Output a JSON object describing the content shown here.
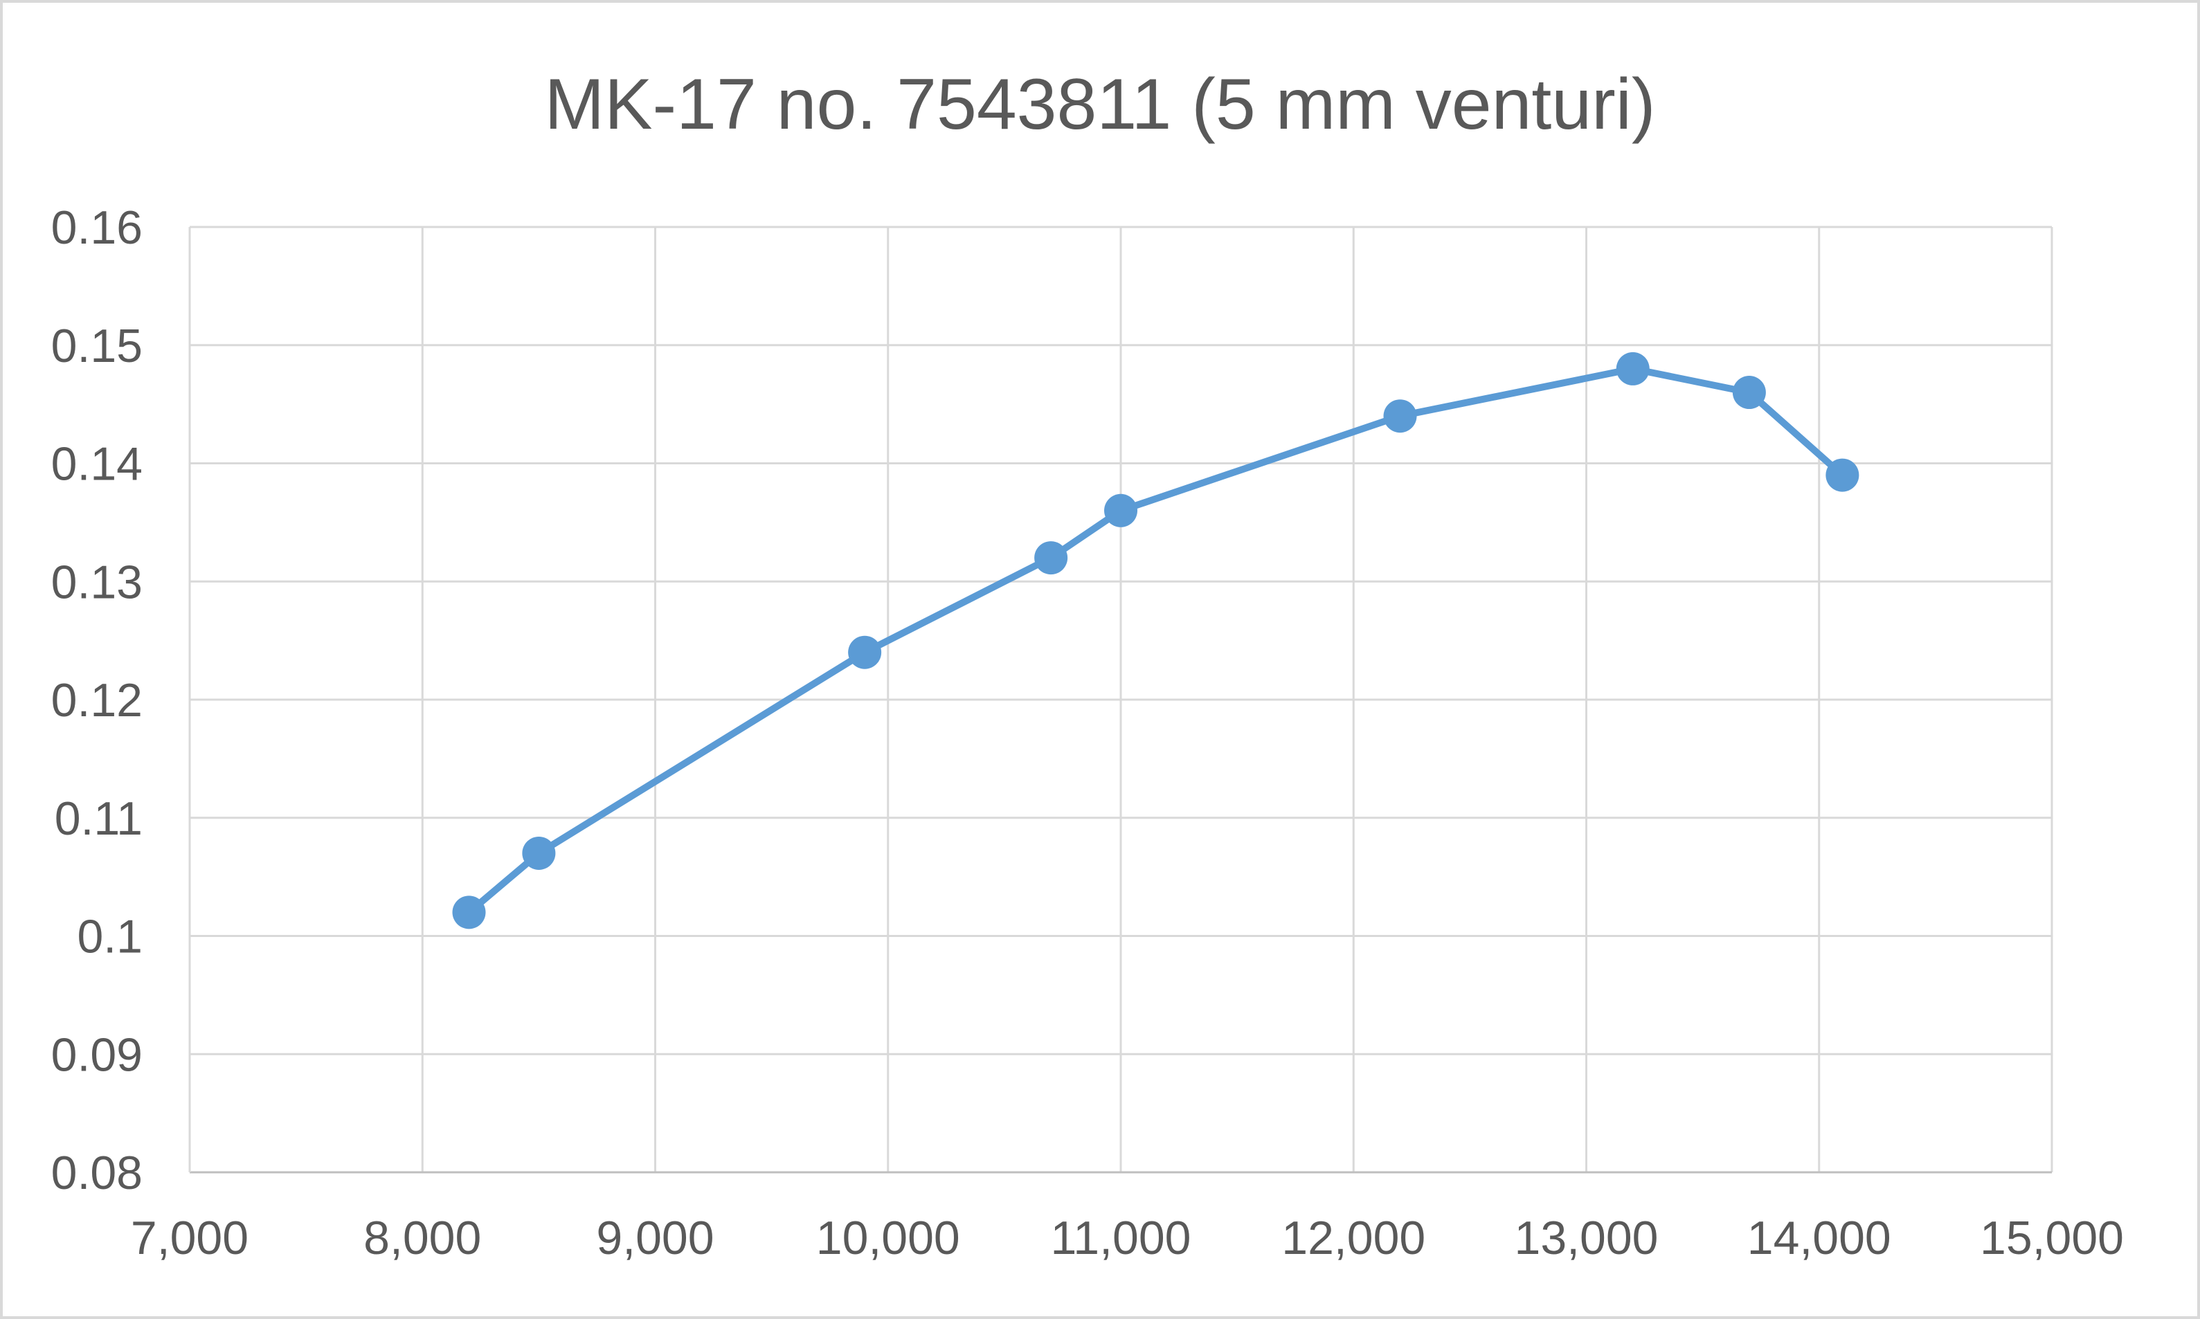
{
  "chart_data": {
    "type": "line",
    "title": "MK-17 no. 7543811 (5 mm venturi)",
    "xlabel": "",
    "ylabel": "",
    "xlim": [
      7000,
      15000
    ],
    "ylim": [
      0.08,
      0.16
    ],
    "x_ticks": [
      "7,000",
      "8,000",
      "9,000",
      "10,000",
      "11,000",
      "12,000",
      "13,000",
      "14,000",
      "15,000"
    ],
    "y_ticks": [
      "0.08",
      "0.09",
      "0.1",
      "0.11",
      "0.12",
      "0.13",
      "0.14",
      "0.15",
      "0.16"
    ],
    "grid": true,
    "legend": "none",
    "series": [
      {
        "color": "#5b9bd5",
        "marker": "circle",
        "points": [
          {
            "x": 8200,
            "y": 0.102
          },
          {
            "x": 8500,
            "y": 0.107
          },
          {
            "x": 9900,
            "y": 0.124
          },
          {
            "x": 10700,
            "y": 0.132
          },
          {
            "x": 11000,
            "y": 0.136
          },
          {
            "x": 12200,
            "y": 0.144
          },
          {
            "x": 13200,
            "y": 0.148
          },
          {
            "x": 13700,
            "y": 0.146
          },
          {
            "x": 14100,
            "y": 0.139
          }
        ]
      }
    ]
  }
}
